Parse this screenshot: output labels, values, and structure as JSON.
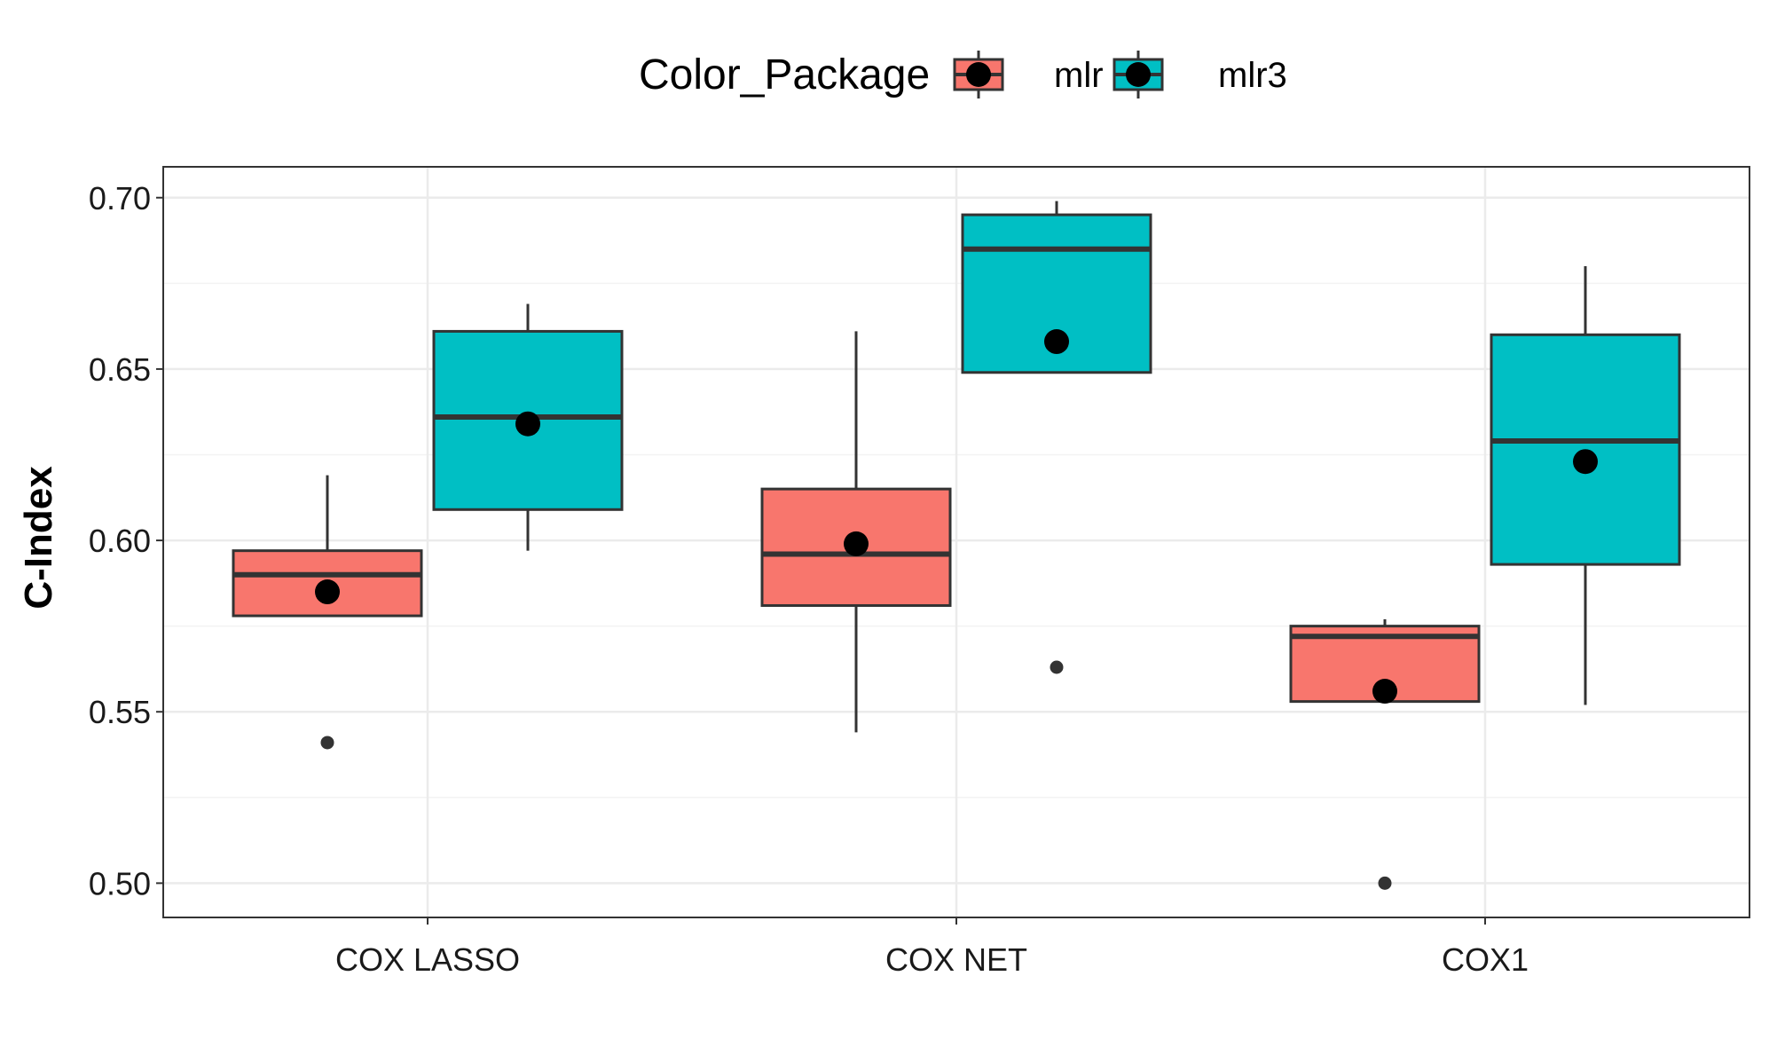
{
  "chart_data": {
    "type": "boxplot",
    "title": "",
    "xlabel": "",
    "ylabel": "C-Index",
    "ylim": [
      0.49,
      0.709
    ],
    "yticks": [
      0.5,
      0.55,
      0.6,
      0.65,
      0.7
    ],
    "ytick_labels": [
      "0.50",
      "0.55",
      "0.60",
      "0.65",
      "0.70"
    ],
    "categories": [
      "COX LASSO",
      "COX NET",
      "COX1"
    ],
    "legend": {
      "title": "Color_Package",
      "position": "top",
      "entries": [
        "mlr",
        "mlr3"
      ]
    },
    "series": [
      {
        "name": "mlr",
        "color": "#F8766D",
        "boxes": [
          {
            "category": "COX LASSO",
            "whisker_low": 0.578,
            "q1": 0.578,
            "median": 0.59,
            "q3": 0.597,
            "whisker_high": 0.619,
            "mean": 0.585,
            "outliers": [
              0.541
            ]
          },
          {
            "category": "COX NET",
            "whisker_low": 0.544,
            "q1": 0.581,
            "median": 0.596,
            "q3": 0.615,
            "whisker_high": 0.661,
            "mean": 0.599,
            "outliers": []
          },
          {
            "category": "COX1",
            "whisker_low": 0.553,
            "q1": 0.553,
            "median": 0.572,
            "q3": 0.575,
            "whisker_high": 0.577,
            "mean": 0.556,
            "outliers": [
              0.5
            ]
          }
        ]
      },
      {
        "name": "mlr3",
        "color": "#00BFC4",
        "boxes": [
          {
            "category": "COX LASSO",
            "whisker_low": 0.597,
            "q1": 0.609,
            "median": 0.636,
            "q3": 0.661,
            "whisker_high": 0.669,
            "mean": 0.634,
            "outliers": []
          },
          {
            "category": "COX NET",
            "whisker_low": 0.649,
            "q1": 0.649,
            "median": 0.685,
            "q3": 0.695,
            "whisker_high": 0.699,
            "mean": 0.658,
            "outliers": [
              0.563
            ]
          },
          {
            "category": "COX1",
            "whisker_low": 0.552,
            "q1": 0.593,
            "median": 0.629,
            "q3": 0.66,
            "whisker_high": 0.68,
            "mean": 0.623,
            "outliers": []
          }
        ]
      }
    ]
  }
}
